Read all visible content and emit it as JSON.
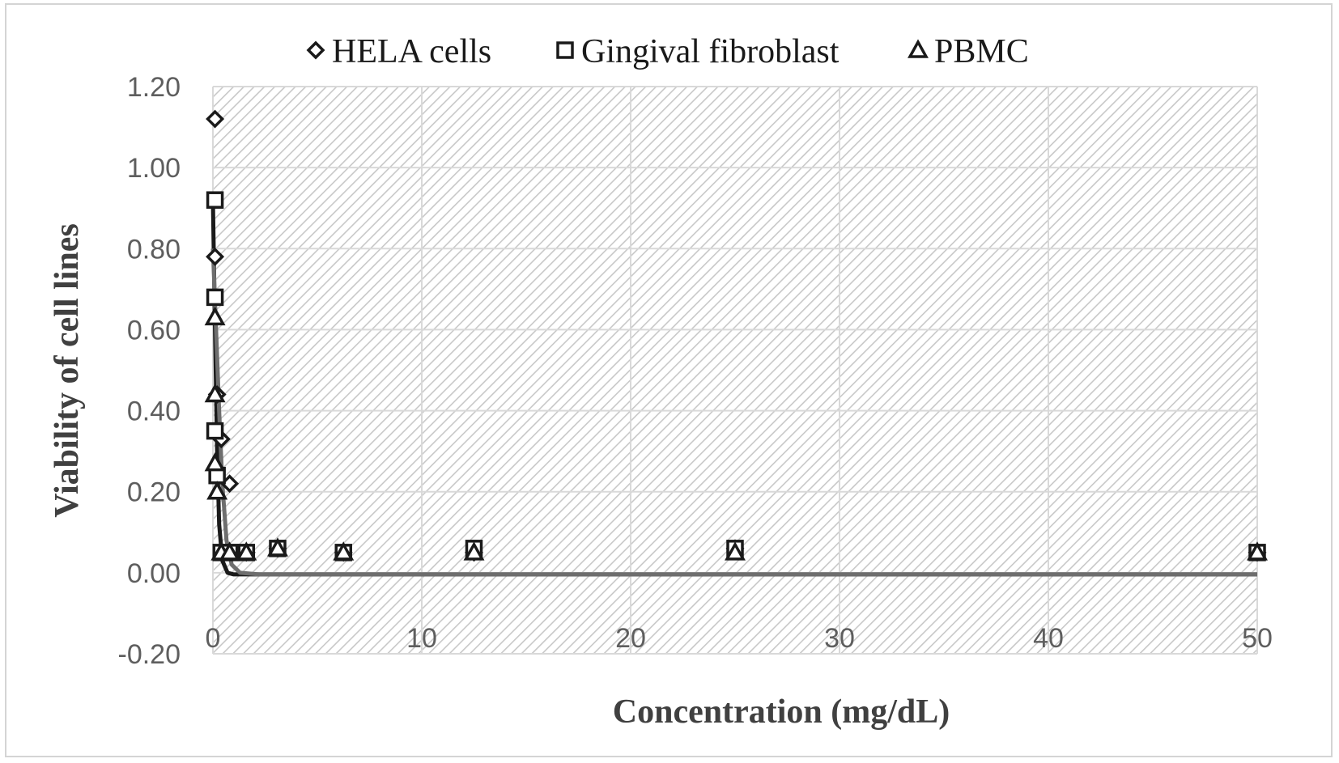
{
  "chart_data": {
    "type": "scatter",
    "xlabel": "Concentration (mg/dL)",
    "ylabel": "Viability of cell lines",
    "xlim": [
      0,
      50
    ],
    "ylim": [
      -0.2,
      1.2
    ],
    "x_ticks": [
      0,
      10,
      20,
      30,
      40,
      50
    ],
    "y_ticks": [
      -0.2,
      0.0,
      0.2,
      0.4,
      0.6,
      0.8,
      1.0,
      1.2
    ],
    "y_tick_labels": [
      "-0.20",
      "0.00",
      "0.20",
      "0.40",
      "0.60",
      "0.80",
      "1.00",
      "1.20"
    ],
    "grid": true,
    "plot_area_pattern": "diagonal-hatch",
    "legend_position": "top",
    "series": [
      {
        "name": "HELA cells",
        "marker": "diamond",
        "x": [
          0.1,
          0.1,
          0.2,
          0.4,
          0.8,
          1.6,
          3.1,
          6.25,
          12.5,
          25,
          50
        ],
        "y": [
          1.12,
          0.78,
          0.44,
          0.33,
          0.22,
          0.05,
          0.06,
          0.05,
          0.05,
          0.06,
          0.05
        ]
      },
      {
        "name": "Gingival fibroblast",
        "marker": "square",
        "x": [
          0.1,
          0.1,
          0.1,
          0.2,
          0.4,
          0.8,
          1.6,
          3.1,
          6.25,
          12.5,
          25,
          50
        ],
        "y": [
          0.92,
          0.68,
          0.35,
          0.24,
          0.05,
          0.05,
          0.05,
          0.06,
          0.05,
          0.06,
          0.06,
          0.05
        ]
      },
      {
        "name": "PBMC",
        "marker": "triangle",
        "x": [
          0.1,
          0.1,
          0.1,
          0.2,
          0.4,
          0.8,
          1.6,
          3.1,
          6.25,
          12.5,
          25,
          50
        ],
        "y": [
          0.63,
          0.44,
          0.27,
          0.2,
          0.05,
          0.05,
          0.05,
          0.06,
          0.05,
          0.05,
          0.05,
          0.05
        ]
      }
    ],
    "fit_curves": [
      {
        "color": "#1a1a1a",
        "points": [
          [
            0,
            0.92
          ],
          [
            0.1,
            0.6
          ],
          [
            0.2,
            0.3
          ],
          [
            0.3,
            0.12
          ],
          [
            0.45,
            0.03
          ],
          [
            0.7,
            0.0
          ],
          [
            1.0,
            -0.004
          ],
          [
            50,
            -0.004
          ]
        ]
      },
      {
        "color": "#6e6e6e",
        "points": [
          [
            0,
            0.8
          ],
          [
            0.15,
            0.6
          ],
          [
            0.3,
            0.4
          ],
          [
            0.45,
            0.22
          ],
          [
            0.65,
            0.08
          ],
          [
            0.9,
            0.02
          ],
          [
            1.3,
            0.0
          ],
          [
            2.2,
            -0.004
          ],
          [
            50,
            -0.004
          ]
        ]
      }
    ],
    "colors": {
      "marker_stroke": "#1a1a1a",
      "grid": "#d9d9d9",
      "hatch": "#c8c8c8",
      "tick_text": "#5e5e5e",
      "axis_title": "#404040"
    }
  }
}
